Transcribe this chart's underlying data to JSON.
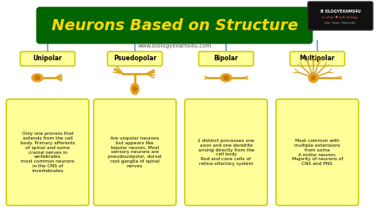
{
  "title": "Neurons Based on Structure",
  "subtitle": "www.biologyexams4u.com",
  "background_color": "#ffffff",
  "title_bg_color": "#006400",
  "title_text_color": "#FFD700",
  "subtitle_color": "#555555",
  "box_color": "#FFFF99",
  "box_border_color": "#CCCC00",
  "arrow_color": "#6699CC",
  "neuron_color": "#DAA520",
  "neuron_body_color": "#E8A020",
  "types": [
    "Unipolar",
    "Psuedopolar",
    "Bipolar",
    "Multipolar"
  ],
  "descriptions": [
    "Only one process that\nextends from the cell\nbody. Primary afferents\nof spinal and some\ncranial nerves in\nvertebrales\nmost common neurons\nin the CNS of\ninvertebrates",
    "Are unipolar neurons\nbut appears like\nbipolar neuron. Most\nsensory neurons are\npseudounipolar, dorsal\nroot ganglia of spinal\nnerves",
    "2 distinct processes one\naxon and one dendrite\narising directly from the\ncell body\nRod and cone cells of\nretina olfactory system",
    "Most common with\nmultiple extensions\nfrom soma\nA motor neuron,\nMajority of neurons of\nCNS and PNS"
  ],
  "label_bg_color": "#FFFF99",
  "label_border_color": "#CCCC00",
  "top_line_color": "#6699CC"
}
